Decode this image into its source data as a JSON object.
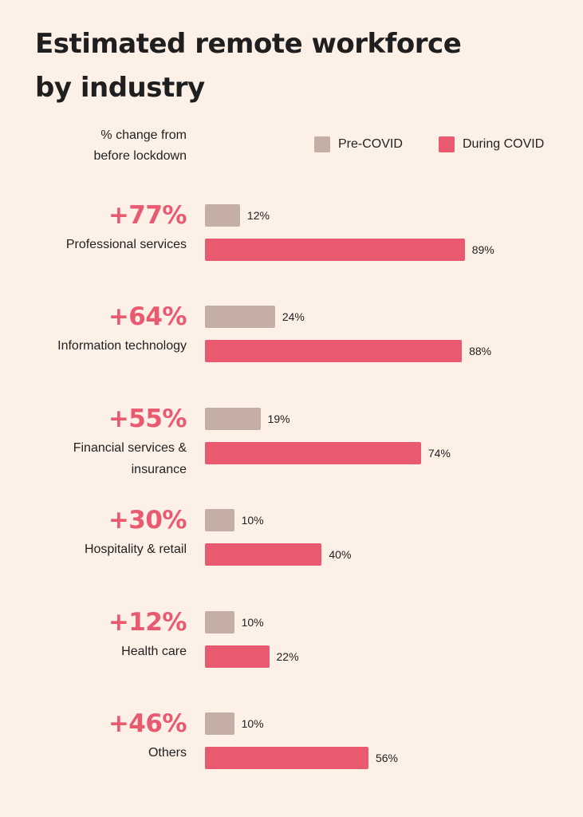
{
  "chart_data": {
    "type": "bar",
    "orientation": "horizontal",
    "title": "Estimated remote workforce by industry",
    "title_lines": [
      "Estimated remote workforce",
      "by industry"
    ],
    "subtitle": "% change from before lockdown",
    "subtitle_lines": [
      "% change from",
      "before lockdown"
    ],
    "categories": [
      "Professional services",
      "Information technology",
      "Financial services & insurance",
      "Hospitality & retail",
      "Health care",
      "Others"
    ],
    "category_lines": [
      [
        "Professional services"
      ],
      [
        "Information technology"
      ],
      [
        "Financial services &",
        "insurance"
      ],
      [
        "Hospitality & retail"
      ],
      [
        "Health care"
      ],
      [
        "Others"
      ]
    ],
    "changes": [
      "+77%",
      "+64%",
      "+55%",
      "+30%",
      "+12%",
      "+46%"
    ],
    "series": [
      {
        "name": "Pre-COVID",
        "color": "#c5aea6",
        "values": [
          12,
          24,
          19,
          10,
          10,
          10
        ]
      },
      {
        "name": "During COVID",
        "color": "#e95970",
        "values": [
          89,
          88,
          74,
          40,
          22,
          56
        ]
      }
    ],
    "value_suffix": "%",
    "xlim": [
      0,
      100
    ],
    "grid": false,
    "legend_position": "top-right",
    "change_color": "#e95970"
  }
}
